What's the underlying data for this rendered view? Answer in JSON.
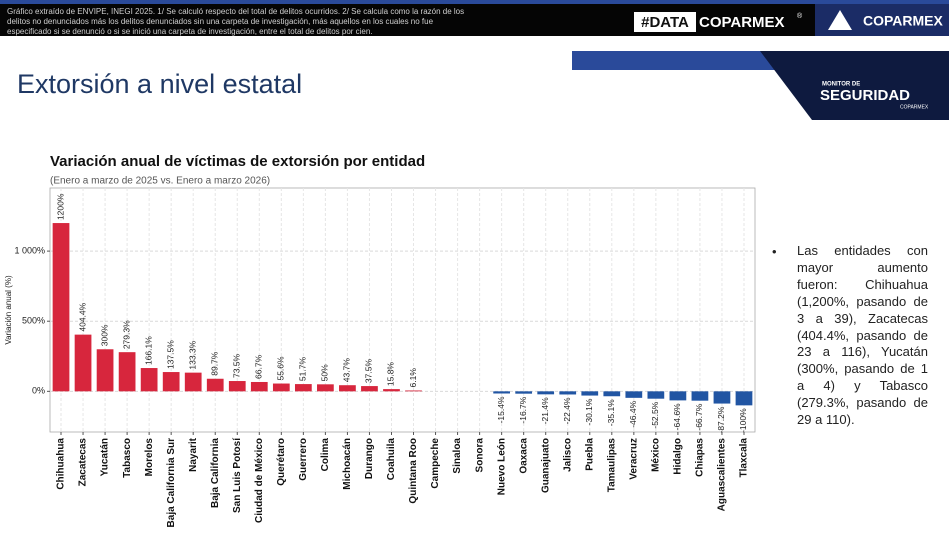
{
  "header": {
    "note": [
      "Gráfico extraído de ENVIPE, INEGI 2025. 1/ Se calculó respecto del total de delitos ocurridos. 2/ Se calcula como la razón de los",
      "delitos no denunciados más los delitos denunciados sin una carpeta de investigación, más aquellos en los cuales no fue",
      "especificado si se denunció o si se inició una carpeta de investigación, entre el total de delitos por cien."
    ],
    "logo_data": "#DATA",
    "logo_coparmex": "COPARMEX",
    "logo_reg": "®",
    "logo_right": "COPARMEX"
  },
  "slide": {
    "title": "Extorsión a nivel estatal"
  },
  "badge": {
    "line1": "MONITOR DE",
    "line2": "SEGURIDAD",
    "line3": "COPARMEX"
  },
  "bullet": "Las entidades con mayor aumento fueron: Chihuahua (1,200%, pasando de 3 a 39), Zacatecas (404.4%, pasando de 23 a 116), Yucatán (300%, pasando de 1 a 4) y Tabasco (279.3%, pasando de 29 a 110).",
  "chart_data": {
    "type": "bar",
    "title": "Variación anual de víctimas de extorsión por entidad",
    "subtitle": "(Enero a marzo de 2025 vs. Enero a marzo 2026)",
    "y_label": "Variación anual (%)",
    "categories": [
      "Chihuahua",
      "Zacatecas",
      "Yucatán",
      "Tabasco",
      "Morelos",
      "Baja California Sur",
      "Nayarit",
      "Baja California",
      "San Luis Potosí",
      "Ciudad de México",
      "Querétaro",
      "Guerrero",
      "Colima",
      "Michoacán",
      "Durango",
      "Coahuila",
      "Quintana Roo",
      "Campeche",
      "Sinaloa",
      "Sonora",
      "Nuevo León",
      "Oaxaca",
      "Guanajuato",
      "Jalisco",
      "Puebla",
      "Tamaulipas",
      "Veracruz",
      "México",
      "Hidalgo",
      "Chiapas",
      "Aguascalientes",
      "Tlaxcala"
    ],
    "values": [
      1200,
      404.4,
      300,
      279.3,
      166.1,
      137.5,
      133.3,
      89.7,
      73.5,
      66.7,
      55.6,
      51.7,
      50,
      43.7,
      37.5,
      15.8,
      6.1,
      0,
      0,
      0,
      -15.4,
      -16.7,
      -21.4,
      -22.4,
      -30.1,
      -35.1,
      -46.4,
      -52.5,
      -64.6,
      -66.7,
      -87.2,
      -100
    ],
    "value_labels": [
      "1200%",
      "404.4%",
      "300%",
      "279.3%",
      "166.1%",
      "137.5%",
      "133.3%",
      "89.7%",
      "73.5%",
      "66.7%",
      "55.6%",
      "51.7%",
      "50%",
      "43.7%",
      "37.5%",
      "15.8%",
      "6.1%",
      null,
      null,
      null,
      "-15.4%",
      "-16.7%",
      "-21.4%",
      "-22.4%",
      "-30.1%",
      "-35.1%",
      "-46.4%",
      "-52.5%",
      "-64.6%",
      "-66.7%",
      "-87.2%",
      "-100%"
    ],
    "color_positive": "#d7263d",
    "color_negative": "#2155a3",
    "ylim": [
      -290,
      1450
    ],
    "yticks": [
      {
        "value": 0,
        "label": "0%"
      },
      {
        "value": 500,
        "label": "500%"
      },
      {
        "value": 1000,
        "label": "1 000%"
      }
    ],
    "grid": true
  }
}
